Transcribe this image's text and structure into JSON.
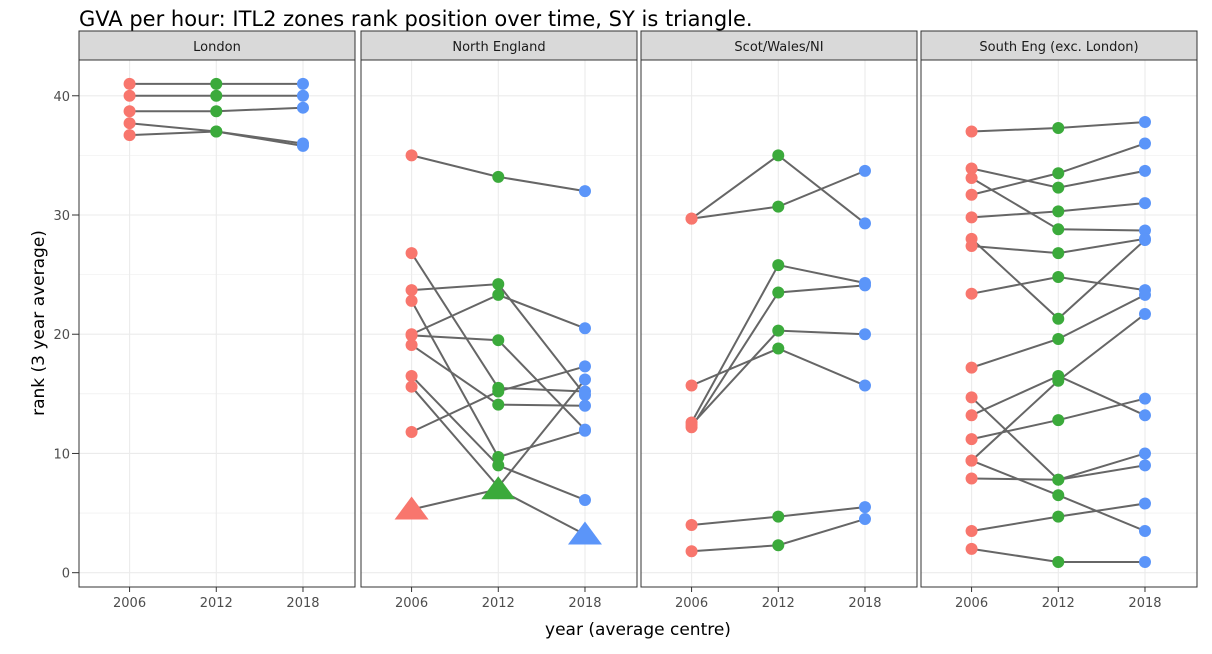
{
  "chart_data": {
    "type": "line",
    "title": "GVA per hour: ITL2 zones rank position over time, SY is triangle.",
    "xlabel": "year (average centre)",
    "ylabel": "rank (3 year average)",
    "x": [
      2006,
      2012,
      2018
    ],
    "x_tick_labels": [
      "2006",
      "2012",
      "2018"
    ],
    "y_ticks": [
      0,
      10,
      20,
      30,
      40
    ],
    "y_tick_labels": [
      "0",
      "10",
      "20",
      "30",
      "40"
    ],
    "xlim": [
      2002.5,
      2021.6
    ],
    "ylim": [
      -1.2,
      43
    ],
    "grid": true,
    "colors": {
      "2006": "#F8766D",
      "2012": "#3BAA3B",
      "2018": "#5B95F9",
      "line": "#666666"
    },
    "panels": [
      {
        "name": "London",
        "lines": [
          {
            "values": [
              41,
              41,
              41
            ]
          },
          {
            "values": [
              40,
              40,
              40
            ]
          },
          {
            "values": [
              38.7,
              38.7,
              39
            ]
          },
          {
            "values": [
              37.7,
              37,
              35.8
            ]
          },
          {
            "values": [
              36.7,
              37,
              36
            ]
          }
        ]
      },
      {
        "name": "North England",
        "lines": [
          {
            "values": [
              35,
              33.2,
              32
            ]
          },
          {
            "values": [
              26.8,
              15.5,
              15.2
            ]
          },
          {
            "values": [
              23.7,
              24.2,
              14.9
            ]
          },
          {
            "values": [
              20,
              23.3,
              20.5
            ]
          },
          {
            "values": [
              22.8,
              9.7,
              11.9
            ]
          },
          {
            "values": [
              19.9,
              19.5,
              12
            ]
          },
          {
            "values": [
              19.1,
              14.1,
              14
            ]
          },
          {
            "values": [
              16.5,
              9,
              6.1
            ]
          },
          {
            "values": [
              15.6,
              7.2,
              16.2
            ]
          },
          {
            "values": [
              11.8,
              15.2,
              17.3
            ]
          },
          {
            "values": [
              5.3,
              7,
              3.2
            ],
            "sy": true
          }
        ]
      },
      {
        "name": "Scot/Wales/NI",
        "lines": [
          {
            "values": [
              29.7,
              35,
              29.3
            ]
          },
          {
            "values": [
              29.7,
              30.7,
              33.7
            ]
          },
          {
            "values": [
              15.7,
              18.8,
              15.7
            ]
          },
          {
            "values": [
              12.6,
              25.8,
              24.3
            ]
          },
          {
            "values": [
              12.2,
              23.5,
              24.1
            ]
          },
          {
            "values": [
              12.4,
              20.3,
              20
            ]
          },
          {
            "values": [
              4,
              4.7,
              5.5
            ]
          },
          {
            "values": [
              1.8,
              2.3,
              4.5
            ]
          }
        ]
      },
      {
        "name": "South Eng (exc. London)",
        "lines": [
          {
            "values": [
              37,
              37.3,
              37.8
            ]
          },
          {
            "values": [
              33.9,
              32.3,
              33.7
            ]
          },
          {
            "values": [
              33.1,
              28.8,
              28.7
            ]
          },
          {
            "values": [
              31.7,
              33.5,
              36
            ]
          },
          {
            "values": [
              29.8,
              30.3,
              31
            ]
          },
          {
            "values": [
              28,
              21.3,
              27.9
            ]
          },
          {
            "values": [
              27.4,
              26.8,
              28
            ]
          },
          {
            "values": [
              23.4,
              24.8,
              23.7
            ]
          },
          {
            "values": [
              17.2,
              19.6,
              23.3
            ]
          },
          {
            "values": [
              14.7,
              7.8,
              10
            ]
          },
          {
            "values": [
              13.2,
              16.5,
              13.2
            ]
          },
          {
            "values": [
              11.2,
              12.8,
              14.6
            ]
          },
          {
            "values": [
              9.4,
              16.1,
              21.7
            ]
          },
          {
            "values": [
              7.9,
              7.8,
              9
            ]
          },
          {
            "values": [
              9.4,
              6.5,
              3.5
            ]
          },
          {
            "values": [
              3.5,
              4.7,
              5.8
            ]
          },
          {
            "values": [
              2,
              0.9,
              0.9
            ]
          }
        ]
      }
    ]
  }
}
